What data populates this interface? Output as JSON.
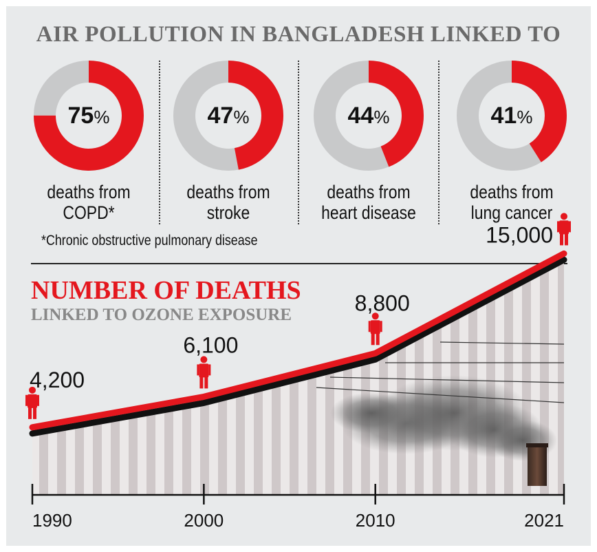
{
  "title": "AIR POLLUTION IN BANGLADESH LINKED TO",
  "colors": {
    "accent": "#e4171e",
    "ring": "#c8c9ca",
    "line_shadow": "#111111"
  },
  "donuts": [
    {
      "value": 75,
      "number": "75",
      "symbol": "%",
      "label_line1": "deaths from",
      "label_line2": "COPD*"
    },
    {
      "value": 47,
      "number": "47",
      "symbol": "%",
      "label_line1": "deaths from",
      "label_line2": "stroke"
    },
    {
      "value": 44,
      "number": "44",
      "symbol": "%",
      "label_line1": "deaths from",
      "label_line2": "heart disease"
    },
    {
      "value": 41,
      "number": "41",
      "symbol": "%",
      "label_line1": "deaths from",
      "label_line2": "lung cancer"
    }
  ],
  "footnote": "*Chronic obstructive pulmonary disease",
  "chart_title": "NUMBER OF DEATHS",
  "chart_subtitle": "LINKED TO OZONE EXPOSURE",
  "chart_data": {
    "type": "line",
    "x": [
      1990,
      2000,
      2010,
      2021
    ],
    "values": [
      4200,
      6100,
      8800,
      15000
    ],
    "data_labels": [
      "4,200",
      "6,100",
      "8,800",
      "15,000"
    ],
    "tick_labels": [
      "1990",
      "2000",
      "2010",
      "2021"
    ],
    "xlim": [
      1990,
      2021
    ],
    "ylim": [
      0,
      16000
    ],
    "grid": false
  }
}
